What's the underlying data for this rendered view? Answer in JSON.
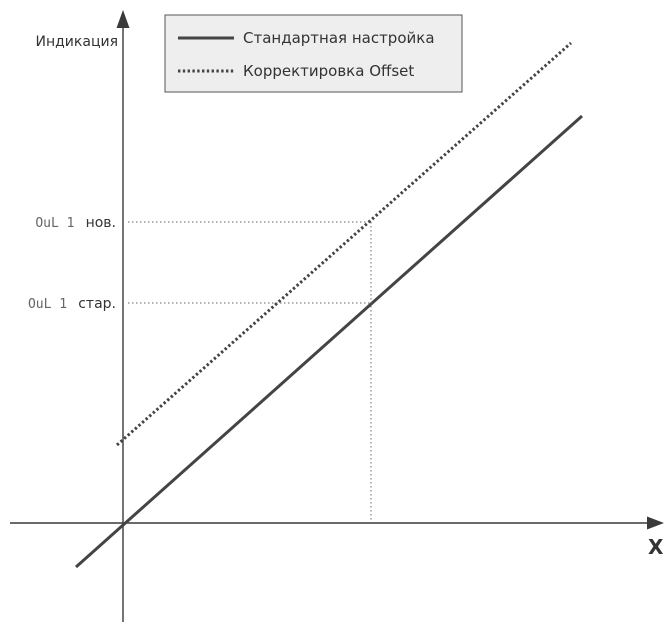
{
  "axes": {
    "y_label": "Индикация",
    "x_label": "X"
  },
  "legend": {
    "items": [
      {
        "label": "Стандартная настройка",
        "style": "solid"
      },
      {
        "label": "Корректировка Offset",
        "style": "dotted"
      }
    ]
  },
  "levels": {
    "new": {
      "code": "OuL 1",
      "suffix": "нов."
    },
    "old": {
      "code": "OuL 1",
      "suffix": "стар."
    }
  },
  "colors": {
    "line": "#444444",
    "axis": "#3a3a3a",
    "legend_bg": "#eeeeee"
  }
}
